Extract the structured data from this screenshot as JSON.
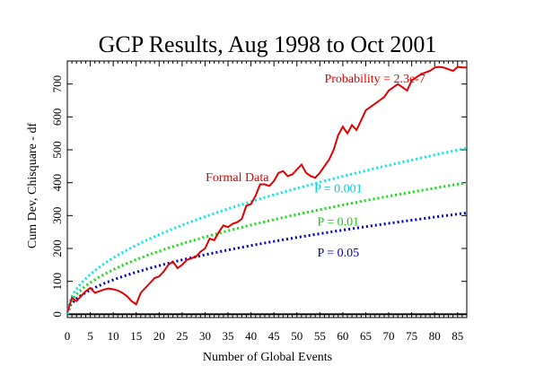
{
  "chart_data": {
    "type": "line",
    "title": "GCP Results, Aug 1998 to Oct 2001",
    "xlabel": "Number of Global Events",
    "ylabel": "Cum Dev, Chisquare - df",
    "xlim": [
      0,
      87
    ],
    "ylim": [
      -10,
      770
    ],
    "x_ticks": [
      0,
      5,
      10,
      15,
      20,
      25,
      30,
      35,
      40,
      45,
      50,
      55,
      60,
      65,
      70,
      75,
      80,
      85
    ],
    "y_ticks": [
      0,
      100,
      200,
      300,
      400,
      500,
      600,
      700
    ],
    "grid": false,
    "zero_line": true,
    "series": [
      {
        "name": "Formal Data",
        "color": "#e00000",
        "style": "solid",
        "x": [
          0,
          1,
          2,
          3,
          4,
          5,
          6,
          7,
          8,
          9,
          10,
          11,
          12,
          13,
          14,
          15,
          16,
          17,
          18,
          19,
          20,
          21,
          22,
          23,
          24,
          25,
          26,
          27,
          28,
          29,
          30,
          31,
          32,
          33,
          34,
          35,
          36,
          37,
          38,
          39,
          40,
          41,
          42,
          43,
          44,
          45,
          46,
          47,
          48,
          49,
          50,
          51,
          52,
          53,
          54,
          55,
          56,
          57,
          58,
          59,
          60,
          61,
          62,
          63,
          64,
          65,
          66,
          67,
          68,
          69,
          70,
          71,
          72,
          73,
          74,
          75,
          76,
          77,
          78,
          79,
          80,
          81,
          82,
          83,
          84,
          85,
          86,
          87
        ],
        "values": [
          5,
          50,
          40,
          55,
          70,
          80,
          65,
          70,
          75,
          78,
          76,
          72,
          65,
          55,
          40,
          30,
          65,
          80,
          95,
          110,
          115,
          130,
          150,
          160,
          140,
          150,
          165,
          170,
          175,
          190,
          200,
          230,
          225,
          250,
          270,
          265,
          275,
          280,
          290,
          330,
          335,
          360,
          395,
          395,
          390,
          405,
          430,
          435,
          420,
          425,
          440,
          455,
          430,
          420,
          415,
          430,
          450,
          470,
          500,
          545,
          570,
          550,
          575,
          560,
          590,
          620,
          630,
          640,
          650,
          660,
          680,
          690,
          700,
          690,
          680,
          710,
          720,
          730,
          735,
          740,
          750,
          752,
          750,
          745,
          740,
          752,
          750,
          750
        ]
      },
      {
        "name": "P = 0.001",
        "color": "#00e8e8",
        "style": "dotted",
        "formula": "sqrt",
        "x_range": [
          0,
          87
        ],
        "end_value": 505
      },
      {
        "name": "P = 0.01",
        "color": "#10e010",
        "style": "dotted",
        "formula": "sqrt",
        "x_range": [
          0,
          87
        ],
        "end_value": 400
      },
      {
        "name": "P = 0.05",
        "color": "#0000c0",
        "style": "dotted",
        "formula": "sqrt",
        "x_range": [
          0,
          87
        ],
        "end_value": 308
      }
    ],
    "annotations": [
      {
        "text": "Probability = 2.3e-7",
        "color": "#e00000",
        "x": 67,
        "y": 705
      },
      {
        "text": "Formal Data",
        "color": "#e00000",
        "x": 37,
        "y": 405
      },
      {
        "text": "P = 0.001",
        "color": "#00d0d0",
        "x": 59,
        "y": 370
      },
      {
        "text": "P = 0.01",
        "color": "#10d010",
        "x": 59,
        "y": 270
      },
      {
        "text": "P = 0.05",
        "color": "#0000c0",
        "x": 59,
        "y": 175
      }
    ]
  }
}
